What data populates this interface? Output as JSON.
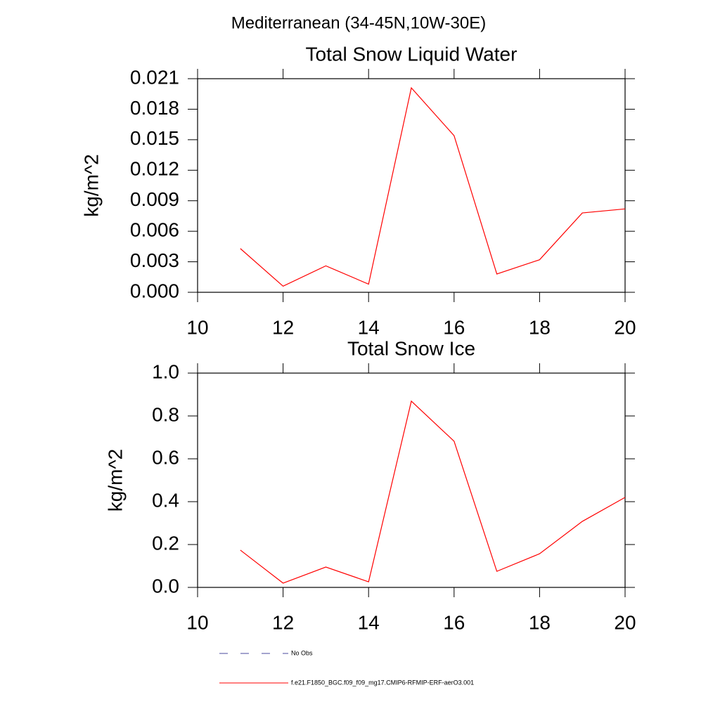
{
  "title": "Mediterranean (34-45N,10W-30E)",
  "legend": [
    {
      "name": "No Obs",
      "color": "#4a4a9c",
      "dash": "12,18"
    }
  ],
  "chart_data": [
    {
      "type": "line",
      "title": "Total Snow Liquid Water",
      "y_label": "kg/m^2",
      "x": [
        11,
        12,
        13,
        14,
        15,
        16,
        17,
        18,
        19,
        20
      ],
      "series": [
        {
          "name": "f.e21.F1850_BGC.f09_f09_mg17.CMIP6-RFMIP-ERF-aerO3.001",
          "color": "#ff0000",
          "values": [
            0.0043,
            0.0006,
            0.0026,
            0.0008,
            0.0201,
            0.0154,
            0.0018,
            0.0032,
            0.0078,
            0.0082
          ]
        }
      ],
      "xlim": [
        10,
        20
      ],
      "xticks": [
        10,
        12,
        14,
        16,
        18,
        20
      ],
      "ylim": [
        0,
        0.021
      ],
      "yticks": [
        {
          "value": 0,
          "label": "0.000"
        },
        {
          "value": 0.003,
          "label": "0.003"
        },
        {
          "value": 0.006,
          "label": "0.006"
        },
        {
          "value": 0.009,
          "label": "0.009"
        },
        {
          "value": 0.012,
          "label": "0.012"
        },
        {
          "value": 0.015,
          "label": "0.015"
        },
        {
          "value": 0.018,
          "label": "0.018"
        },
        {
          "value": 0.021,
          "label": "0.021"
        }
      ]
    },
    {
      "type": "line",
      "title": "Total Snow Ice",
      "y_label": "kg/m^2",
      "x": [
        11,
        12,
        13,
        14,
        15,
        16,
        17,
        18,
        19,
        20
      ],
      "series": [
        {
          "name": "f.e21.F1850_BGC.f09_f09_mg17.CMIP6-RFMIP-ERF-aerO3.001",
          "color": "#ff0000",
          "values": [
            0.174,
            0.02,
            0.095,
            0.026,
            0.869,
            0.682,
            0.075,
            0.157,
            0.308,
            0.42
          ]
        }
      ],
      "xlim": [
        10,
        20
      ],
      "xticks": [
        10,
        12,
        14,
        16,
        18,
        20
      ],
      "ylim": [
        0,
        1
      ],
      "yticks": [
        {
          "value": 0,
          "label": "0.0"
        },
        0.2,
        0.4,
        0.6,
        0.8,
        {
          "value": 1,
          "label": "1.0"
        }
      ]
    }
  ]
}
